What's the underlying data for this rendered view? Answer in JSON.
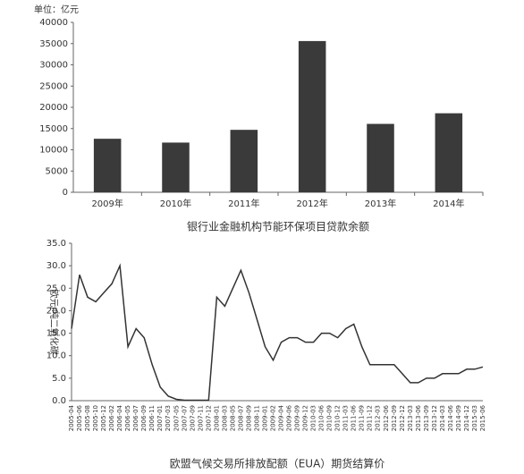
{
  "chart_data": [
    {
      "type": "bar",
      "title": "银行业金融机构节能环保项目贷款余额",
      "unit": "单位：亿元",
      "categories": [
        "2009年",
        "2010年",
        "2011年",
        "2012年",
        "2013年",
        "2014年"
      ],
      "values": [
        12600,
        11700,
        14700,
        35600,
        16100,
        18600
      ],
      "color": "#3a3a3a",
      "ylim": [
        0,
        40000
      ],
      "yticks": [
        0,
        5000,
        10000,
        15000,
        20000,
        25000,
        30000,
        35000,
        40000
      ],
      "grid": false
    },
    {
      "type": "line",
      "title": "欧盟气候交易所排放配额（EUA）期货结算价",
      "y_label": "欧元/吨二氧化碳",
      "categories": [
        "2005-04",
        "2005-06",
        "2005-08",
        "2005-10",
        "2005-12",
        "2006-02",
        "2006-04",
        "2006-05",
        "2006-07",
        "2006-09",
        "2006-11",
        "2007-01",
        "2007-03",
        "2007-05",
        "2007-07",
        "2007-09",
        "2007-11",
        "2007-12",
        "2008-01",
        "2008-03",
        "2008-05",
        "2008-07",
        "2008-09",
        "2008-11",
        "2009-01",
        "2009-02",
        "2009-04",
        "2009-06",
        "2009-09",
        "2009-12",
        "2010-03",
        "2010-06",
        "2010-09",
        "2010-12",
        "2011-03",
        "2011-06",
        "2011-09",
        "2011-12",
        "2012-03",
        "2012-06",
        "2012-09",
        "2012-12",
        "2013-03",
        "2013-06",
        "2013-09",
        "2013-12",
        "2014-03",
        "2014-06",
        "2014-09",
        "2014-12",
        "2015-03",
        "2015-06"
      ],
      "values": [
        16,
        28,
        23,
        22,
        24,
        26,
        30,
        12,
        16,
        14,
        8,
        3,
        1,
        0.3,
        0.1,
        0.1,
        0.1,
        0.1,
        23,
        21,
        25,
        29,
        24,
        18,
        12,
        9,
        13,
        14,
        14,
        13,
        13,
        15,
        15,
        14,
        16,
        17,
        12,
        8,
        8,
        8,
        8,
        6,
        4,
        4,
        5,
        5,
        6,
        6,
        6,
        7,
        7,
        7.5
      ],
      "color": "#333333",
      "ylim": [
        0,
        35
      ],
      "yticks": [
        {
          "value": 0,
          "label": "0.0"
        },
        {
          "value": 5,
          "label": "5.0"
        },
        {
          "value": 10,
          "label": "10.0"
        },
        {
          "value": 15,
          "label": "15.0"
        },
        {
          "value": 20,
          "label": "20.0"
        },
        {
          "value": 25,
          "label": "25.0"
        },
        {
          "value": 30,
          "label": "30.0"
        },
        {
          "value": 35,
          "label": "35.0"
        }
      ],
      "grid": false
    }
  ]
}
